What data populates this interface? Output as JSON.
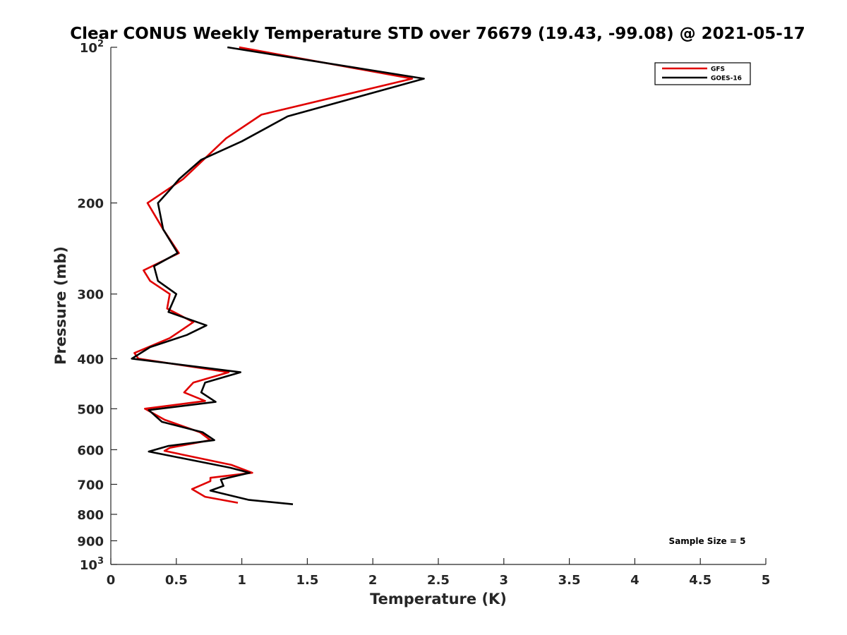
{
  "chart_data": {
    "type": "line",
    "title": "Clear CONUS Weekly Temperature STD over 76679 (19.43, -99.08) @ 2021-05-17",
    "xlabel": "Temperature (K)",
    "ylabel": "Pressure (mb)",
    "xlim": [
      0,
      5
    ],
    "ylim": [
      100,
      1000
    ],
    "yscale": "log",
    "y_reversed": true,
    "grid": false,
    "legend_position": "top-right",
    "x_ticks": [
      "0",
      "0.5",
      "1",
      "1.5",
      "2",
      "2.5",
      "3",
      "3.5",
      "4",
      "4.5",
      "5"
    ],
    "x_tick_values": [
      0,
      0.5,
      1,
      1.5,
      2,
      2.5,
      3,
      3.5,
      4,
      4.5,
      5
    ],
    "y_tick_values": [
      100,
      200,
      300,
      400,
      500,
      600,
      700,
      800,
      900,
      1000
    ],
    "y_ticks": [
      {
        "value": 100,
        "base": "10",
        "exp": "2"
      },
      {
        "value": 200,
        "base": "200",
        "exp": ""
      },
      {
        "value": 300,
        "base": "300",
        "exp": ""
      },
      {
        "value": 400,
        "base": "400",
        "exp": ""
      },
      {
        "value": 500,
        "base": "500",
        "exp": ""
      },
      {
        "value": 600,
        "base": "600",
        "exp": ""
      },
      {
        "value": 700,
        "base": "700",
        "exp": ""
      },
      {
        "value": 800,
        "base": "800",
        "exp": ""
      },
      {
        "value": 900,
        "base": "900",
        "exp": ""
      },
      {
        "value": 1000,
        "base": "10",
        "exp": "3"
      }
    ],
    "annotation": "Sample Size = 5",
    "series": [
      {
        "name": "GFS",
        "color": "#e00000",
        "points": [
          [
            0.98,
            100
          ],
          [
            2.3,
            115
          ],
          [
            1.15,
            135
          ],
          [
            0.88,
            150
          ],
          [
            0.55,
            180
          ],
          [
            0.28,
            200
          ],
          [
            0.4,
            225
          ],
          [
            0.52,
            250
          ],
          [
            0.25,
            270
          ],
          [
            0.3,
            283
          ],
          [
            0.45,
            300
          ],
          [
            0.43,
            320
          ],
          [
            0.63,
            340
          ],
          [
            0.45,
            365
          ],
          [
            0.18,
            390
          ],
          [
            0.21,
            400
          ],
          [
            0.9,
            425
          ],
          [
            0.63,
            445
          ],
          [
            0.56,
            465
          ],
          [
            0.72,
            483
          ],
          [
            0.26,
            500
          ],
          [
            0.41,
            525
          ],
          [
            0.68,
            555
          ],
          [
            0.76,
            575
          ],
          [
            0.45,
            595
          ],
          [
            0.41,
            603
          ],
          [
            0.92,
            642
          ],
          [
            1.08,
            665
          ],
          [
            0.76,
            680
          ],
          [
            0.76,
            690
          ],
          [
            0.62,
            715
          ],
          [
            0.72,
            740
          ],
          [
            0.97,
            760
          ]
        ]
      },
      {
        "name": "GOES-16",
        "color": "#000000",
        "points": [
          [
            0.89,
            100
          ],
          [
            2.39,
            115
          ],
          [
            1.35,
            136
          ],
          [
            1.0,
            152
          ],
          [
            0.69,
            165
          ],
          [
            0.52,
            180
          ],
          [
            0.44,
            190
          ],
          [
            0.36,
            200
          ],
          [
            0.4,
            225
          ],
          [
            0.51,
            250
          ],
          [
            0.33,
            265
          ],
          [
            0.36,
            283
          ],
          [
            0.5,
            300
          ],
          [
            0.44,
            325
          ],
          [
            0.73,
            345
          ],
          [
            0.58,
            360
          ],
          [
            0.3,
            380
          ],
          [
            0.16,
            400
          ],
          [
            0.99,
            425
          ],
          [
            0.72,
            445
          ],
          [
            0.69,
            465
          ],
          [
            0.8,
            485
          ],
          [
            0.29,
            503
          ],
          [
            0.39,
            530
          ],
          [
            0.7,
            555
          ],
          [
            0.79,
            575
          ],
          [
            0.44,
            590
          ],
          [
            0.29,
            605
          ],
          [
            0.91,
            650
          ],
          [
            1.06,
            665
          ],
          [
            0.84,
            685
          ],
          [
            0.86,
            705
          ],
          [
            0.76,
            720
          ],
          [
            1.05,
            750
          ],
          [
            1.39,
            765
          ]
        ]
      }
    ]
  }
}
